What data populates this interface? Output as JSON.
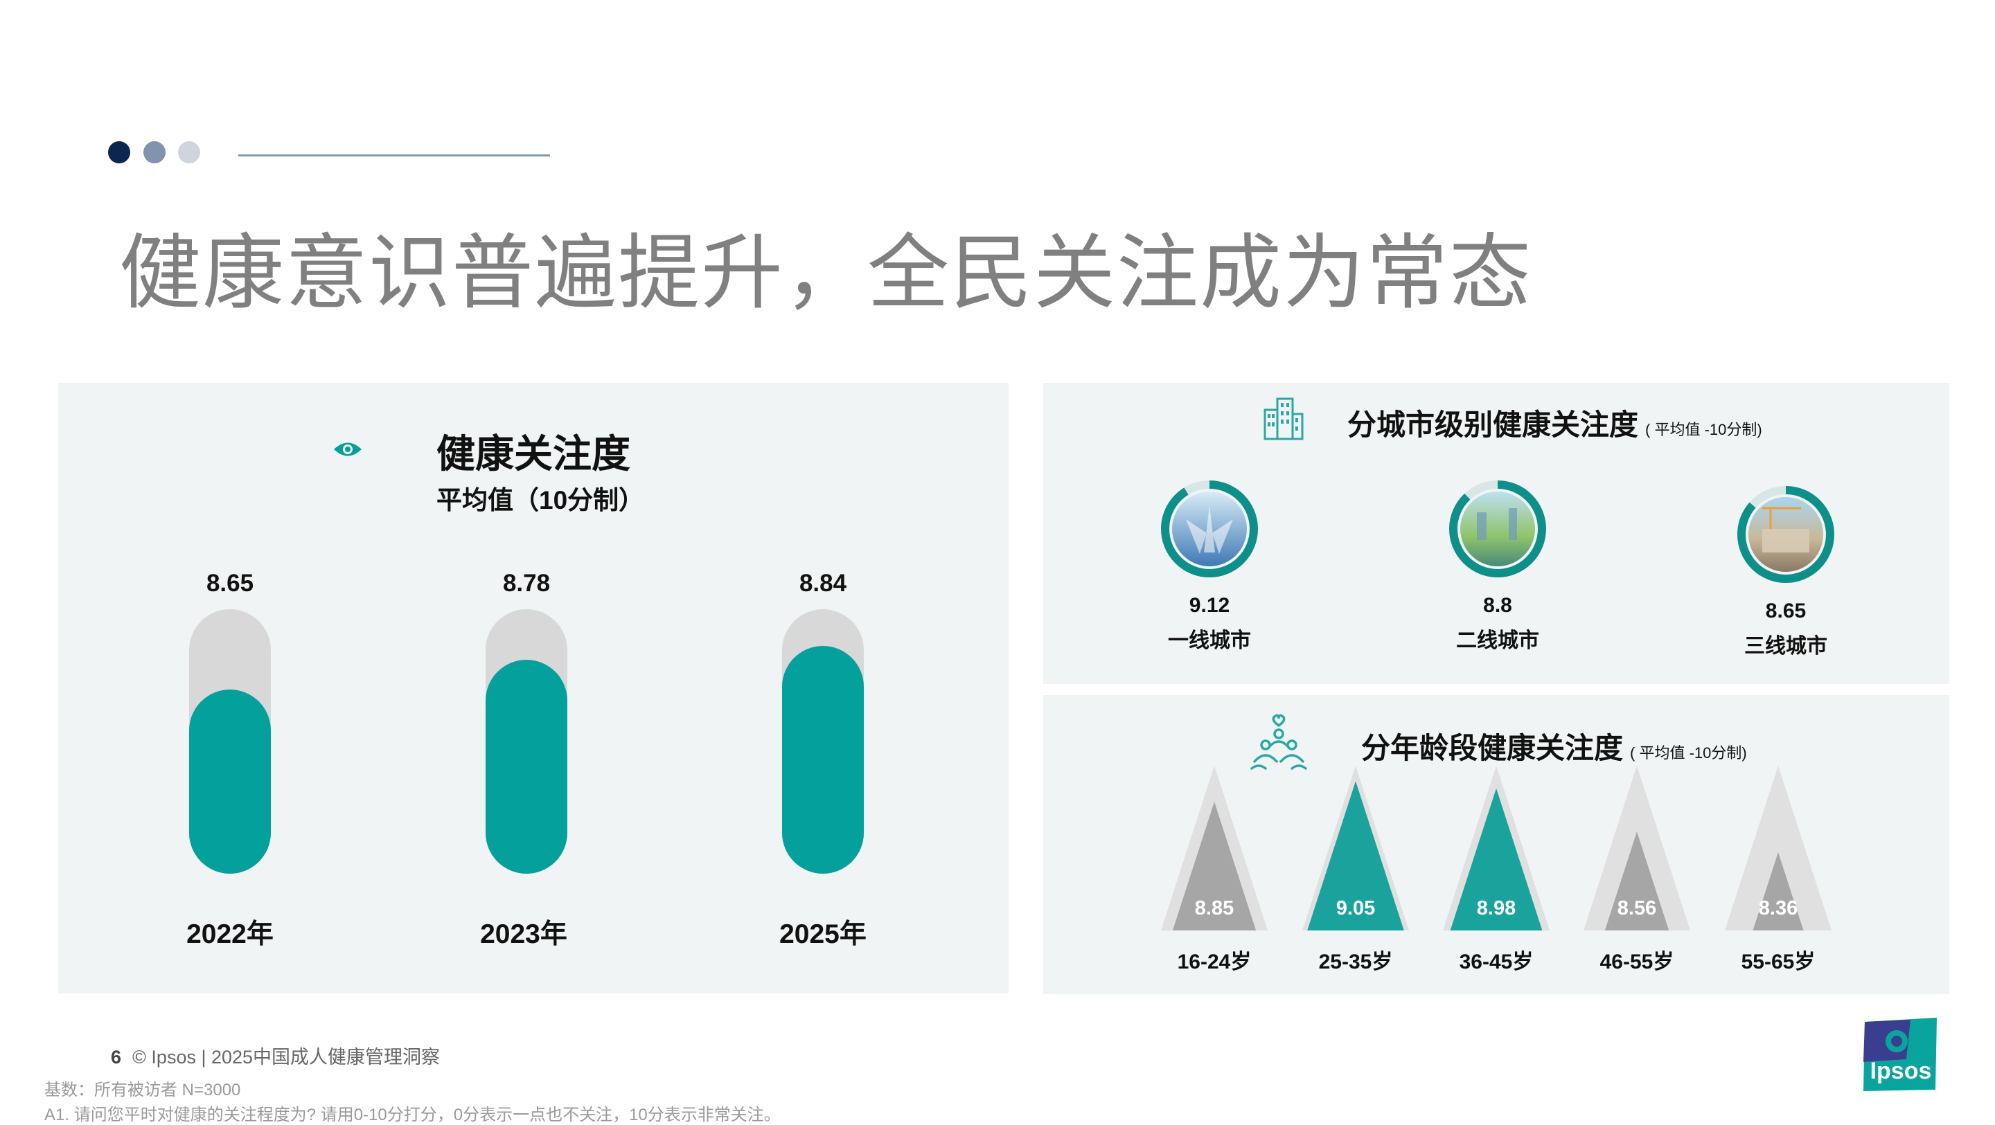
{
  "header": {
    "title": "健康意识普遍提升，全民关注成为常态"
  },
  "left_panel": {
    "icon": "eye-icon",
    "title": "健康关注度",
    "subtitle": "平均值（10分制）",
    "bars": [
      {
        "year": "2022年",
        "value": "8.65",
        "score": 8.65
      },
      {
        "year": "2023年",
        "value": "8.78",
        "score": 8.78
      },
      {
        "year": "2025年",
        "value": "8.84",
        "score": 8.84
      }
    ]
  },
  "city_panel": {
    "icon": "building-icon",
    "title": "分城市级别健康关注度",
    "note": "( 平均值 -10分制)",
    "cities": [
      {
        "name": "一线城市",
        "value": "9.12",
        "score": 9.12
      },
      {
        "name": "二线城市",
        "value": "8.8",
        "score": 8.8
      },
      {
        "name": "三线城市",
        "value": "8.65",
        "score": 8.65
      }
    ]
  },
  "age_panel": {
    "icon": "people-icon",
    "title": "分年龄段健康关注度",
    "note": "( 平均值 -10分制)",
    "groups": [
      {
        "age": "16-24岁",
        "value": "8.85",
        "score": 8.85,
        "color": "#a6a6a6"
      },
      {
        "age": "25-35岁",
        "value": "9.05",
        "score": 9.05,
        "color": "#1aa39c"
      },
      {
        "age": "36-45岁",
        "value": "8.98",
        "score": 8.98,
        "color": "#1aa39c"
      },
      {
        "age": "46-55岁",
        "value": "8.56",
        "score": 8.56,
        "color": "#a6a6a6"
      },
      {
        "age": "55-65岁",
        "value": "8.36",
        "score": 8.36,
        "color": "#a6a6a6"
      }
    ]
  },
  "colors": {
    "accent": "#04a09c",
    "track": "#d8d8d8",
    "navy": "#0d2650"
  },
  "footer": {
    "page": "6",
    "copyright": "© Ipsos | 2025中国成人健康管理洞察",
    "base": "基数：所有被访者 N=3000",
    "question": "A1. 请问您平时对健康的关注程度为? 请用0-10分打分，0分表示一点也不关注，10分表示非常关注。"
  },
  "logo": {
    "text": "Ipsos"
  }
}
